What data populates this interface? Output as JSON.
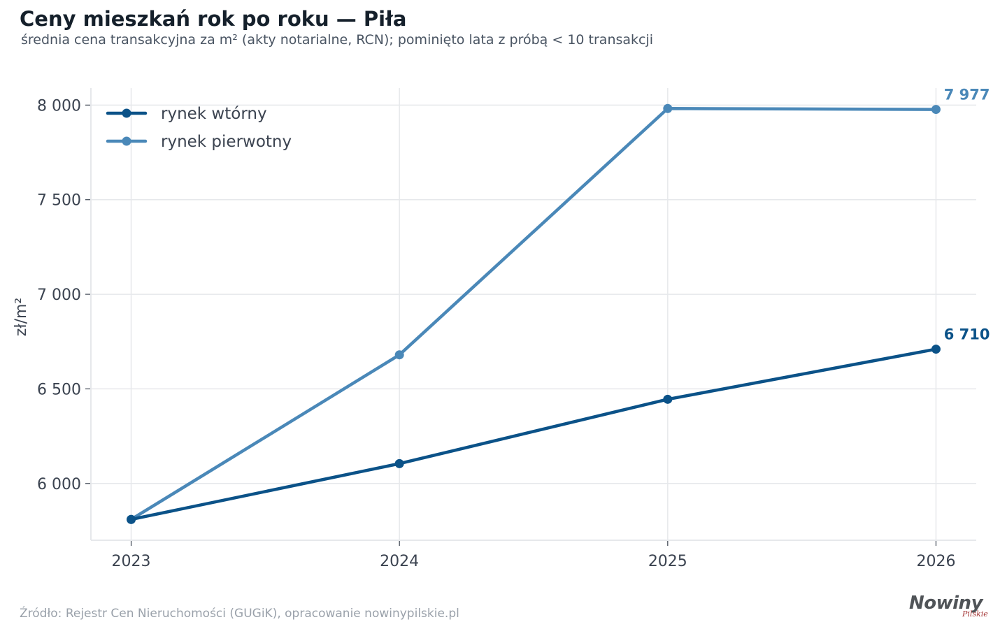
{
  "title": "Ceny mieszkań rok po roku — Piła",
  "subtitle": "średnia cena transakcyjna za m² (akty notarialne, RCN); pominięto lata z próbą < 10 transakcji",
  "source": "Źródło: Rejestr Cen Nieruchomości (GUGiK), opracowanie nowinypilskie.pl",
  "logo": {
    "main": "Nowiny",
    "sub": "Pilskie"
  },
  "colors": {
    "secondary": "#0b5288",
    "primary": "#4a88b8",
    "grid": "#e6e8eb"
  },
  "chart_data": {
    "type": "line",
    "title": "Ceny mieszkań rok po roku — Piła",
    "subtitle": "średnia cena transakcyjna za m² (akty notarialne, RCN); pominięto lata z próbą < 10 transakcji",
    "xlabel": "",
    "ylabel": "zł/m²",
    "x": [
      "2023",
      "2024",
      "2025",
      "2026"
    ],
    "xlim": [
      2022.85,
      2026.15
    ],
    "ylim": [
      5700,
      8090
    ],
    "yticks": [
      6000,
      6500,
      7000,
      7500,
      8000
    ],
    "ytick_labels": [
      "6 000",
      "6 500",
      "7 000",
      "7 500",
      "8 000"
    ],
    "grid": true,
    "legend": "top-left",
    "series": [
      {
        "name": "rynek wtórny",
        "color": "#0b5288",
        "values": [
          5810,
          6105,
          6445,
          6710
        ],
        "end_label": "6 710"
      },
      {
        "name": "rynek pierwotny",
        "color": "#4a88b8",
        "values": [
          5810,
          6680,
          7982,
          7977
        ],
        "end_label": "7 977"
      }
    ]
  }
}
